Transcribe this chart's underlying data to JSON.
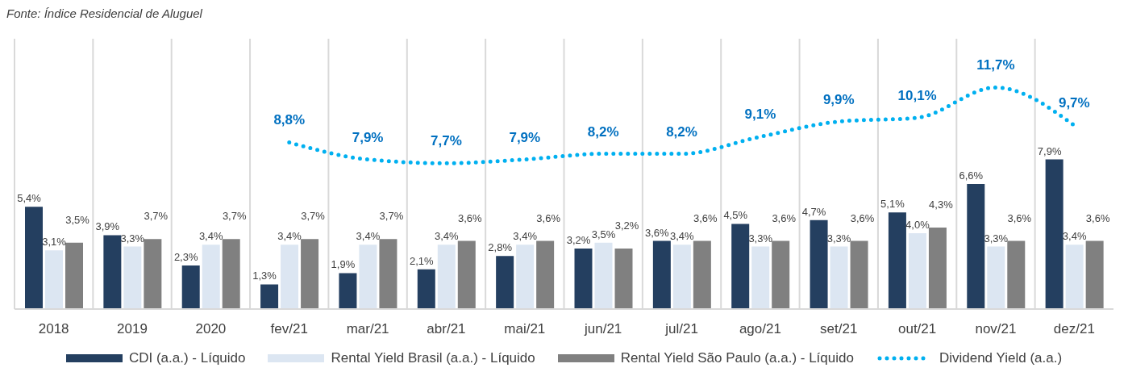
{
  "chart_data": {
    "type": "bar",
    "annotations": [
      "Fonte: Índice Residencial de Aluguel"
    ],
    "categories": [
      "2018",
      "2019",
      "2020",
      "fev/21",
      "mar/21",
      "abr/21",
      "mai/21",
      "jun/21",
      "jul/21",
      "ago/21",
      "set/21",
      "out/21",
      "nov/21",
      "dez/21"
    ],
    "grid": "x",
    "legend": "bottom",
    "series": [
      {
        "name": "CDI (a.a.) - Líquido",
        "color": "#243f60",
        "values": [
          5.4,
          3.9,
          2.3,
          1.3,
          1.9,
          2.1,
          2.8,
          3.2,
          3.6,
          4.5,
          4.7,
          5.1,
          6.6,
          7.9
        ],
        "value_labels": [
          "5,4%",
          "3,9%",
          "2,3%",
          "1,3%",
          "1,9%",
          "2,1%",
          "2,8%",
          "3,2%",
          "3,6%",
          "4,5%",
          "4,7%",
          "5,1%",
          "6,6%",
          "7,9%"
        ]
      },
      {
        "name": "Rental Yield Brasil (a.a.) - Líquido",
        "color": "#dce6f2",
        "values": [
          3.1,
          3.3,
          3.4,
          3.4,
          3.4,
          3.4,
          3.4,
          3.5,
          3.4,
          3.3,
          3.3,
          4.0,
          3.3,
          3.4
        ],
        "value_labels": [
          "3,1%",
          "3,3%",
          "3,4%",
          "3,4%",
          "3,4%",
          "3,4%",
          "3,4%",
          "3,5%",
          "3,4%",
          "3,3%",
          "3,3%",
          "4,0%",
          "3,3%",
          "3,4%"
        ]
      },
      {
        "name": "Rental Yield São Paulo (a.a.) - Líquido",
        "color": "#808080",
        "values": [
          3.5,
          3.7,
          3.7,
          3.7,
          3.7,
          3.6,
          3.6,
          3.2,
          3.6,
          3.6,
          3.6,
          4.3,
          3.6,
          3.6
        ],
        "value_labels": [
          "3,5%",
          "3,7%",
          "3,7%",
          "3,7%",
          "3,7%",
          "3,6%",
          "3,6%",
          "3,2%",
          "3,6%",
          "3,6%",
          "3,6%",
          "4,3%",
          "3,6%",
          "3,6%"
        ]
      },
      {
        "name": "Dividend Yield (a.a.)",
        "type": "line",
        "line_style": "dotted",
        "marker": "none",
        "color": "#00b0f0",
        "values": [
          null,
          null,
          null,
          8.8,
          7.9,
          7.7,
          7.9,
          8.2,
          8.2,
          9.1,
          9.9,
          10.1,
          11.7,
          9.7
        ],
        "value_labels": [
          null,
          null,
          null,
          "8,8%",
          "7,9%",
          "7,7%",
          "7,9%",
          "8,2%",
          "8,2%",
          "9,1%",
          "9,9%",
          "10,1%",
          "11,7%",
          "9,7%"
        ]
      }
    ]
  }
}
